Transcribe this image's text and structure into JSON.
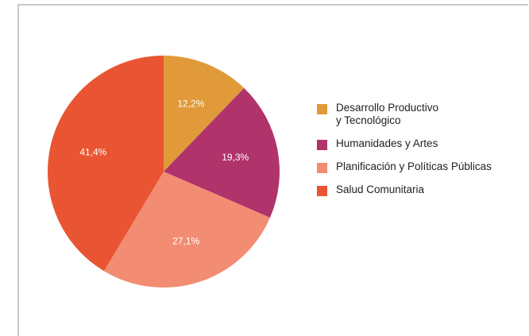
{
  "chart_data": {
    "type": "pie",
    "title": "",
    "legend_position": "right",
    "slices": [
      {
        "label": "Desarrollo Productivo\ny Tecnológico",
        "value": 12.2,
        "value_label": "12,2%",
        "color": "#e09a3a"
      },
      {
        "label": "Humanidades y Artes",
        "value": 19.3,
        "value_label": "19,3%",
        "color": "#b0336b"
      },
      {
        "label": "Planificación y Políticas Públicas",
        "value": 27.1,
        "value_label": "27,1%",
        "color": "#f28c72"
      },
      {
        "label": "Salud Comunitaria",
        "value": 41.4,
        "value_label": "41,4%",
        "color": "#e95532"
      }
    ]
  }
}
